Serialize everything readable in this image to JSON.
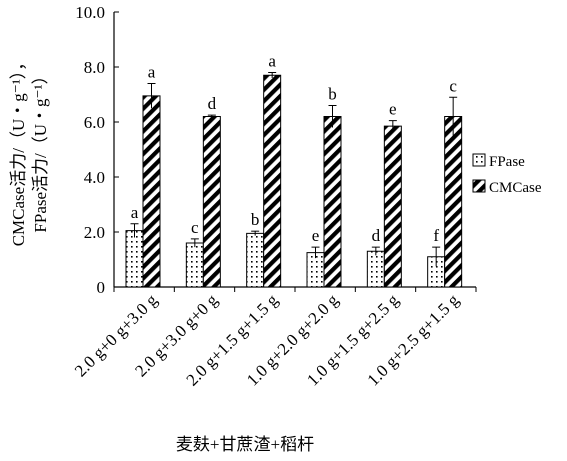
{
  "chart_data": {
    "type": "bar",
    "xlabel": "麦麸+甘蔗渣+稻杆",
    "ylabel_line1": "CMCase活力/（U・g⁻¹），",
    "ylabel_line2": "FPase活力/（U・g⁻¹）",
    "ylim": [
      0,
      10
    ],
    "yticks": [
      "0",
      "2.0",
      "4.0",
      "6.0",
      "8.0",
      "10.0"
    ],
    "ytick_values": [
      0,
      2,
      4,
      6,
      8,
      10
    ],
    "grid": false,
    "legend_position": "right",
    "categories": [
      "2.0 g+0 g+3.0 g",
      "2.0 g+3.0 g+0 g",
      "2.0 g+1.5 g+1.5 g",
      "1.0 g+2.0 g+2.0 g",
      "1.0 g+1.5 g+2.5 g",
      "1.0 g+2.5 g+1.5 g"
    ],
    "series": [
      {
        "name": "FPase",
        "pattern": "dots",
        "values": [
          2.05,
          1.6,
          1.95,
          1.25,
          1.3,
          1.1
        ],
        "errors": [
          0.25,
          0.15,
          0.08,
          0.2,
          0.15,
          0.35
        ],
        "letters": [
          "a",
          "c",
          "b",
          "e",
          "d",
          "f"
        ]
      },
      {
        "name": "CMCase",
        "pattern": "stripes",
        "values": [
          6.95,
          6.2,
          7.7,
          6.2,
          5.85,
          6.2
        ],
        "errors": [
          0.45,
          0.05,
          0.1,
          0.4,
          0.2,
          0.7
        ],
        "letters": [
          "a",
          "d",
          "a",
          "b",
          "e",
          "c"
        ]
      }
    ]
  }
}
